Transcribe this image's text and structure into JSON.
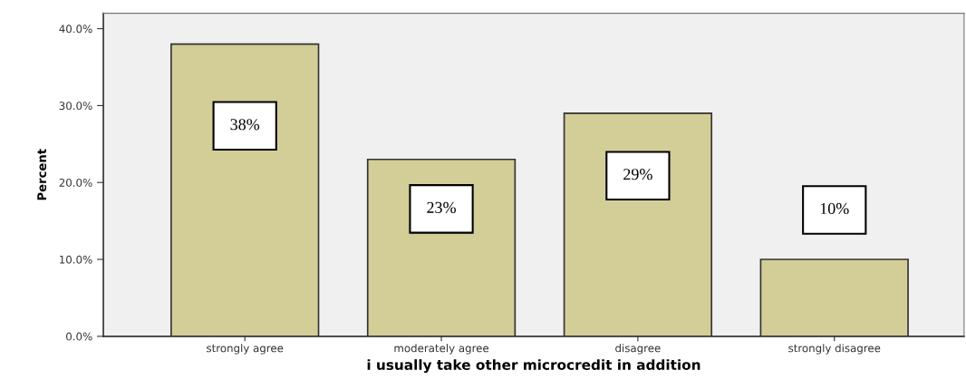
{
  "chart_data": {
    "type": "bar",
    "xlabel": "i usually take other microcredit in addition",
    "ylabel": "Percent",
    "categories": [
      "strongly agree",
      "moderately agree",
      "disagree",
      "strongly disagree"
    ],
    "values": [
      38,
      23,
      29,
      10
    ],
    "color": "#d3ce97",
    "value_labels": [
      "38%",
      "23%",
      "29%",
      "10%"
    ],
    "ylim": [
      0,
      42
    ],
    "yticks": [
      {
        "value": 0,
        "label": "0.0%"
      },
      {
        "value": 10,
        "label": "10.0%"
      },
      {
        "value": 20,
        "label": "20.0%"
      },
      {
        "value": 30,
        "label": "30.0%"
      },
      {
        "value": 40,
        "label": "40.0%"
      }
    ]
  }
}
